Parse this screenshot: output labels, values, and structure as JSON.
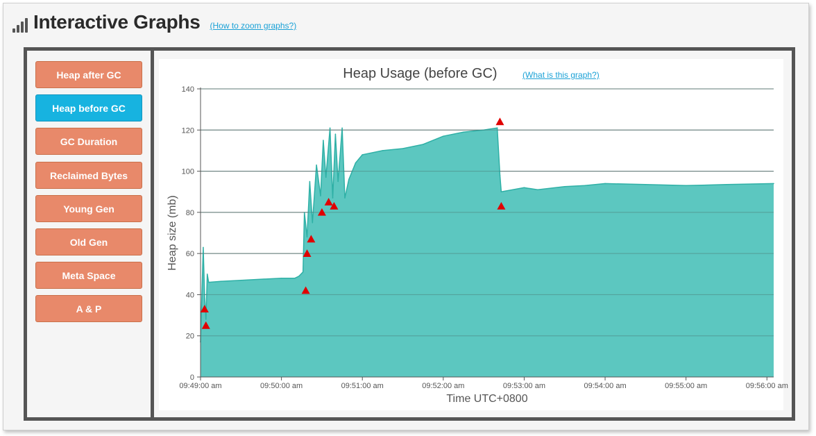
{
  "header": {
    "title": "Interactive Graphs",
    "zoom_link": "(How to zoom graphs?)"
  },
  "sidebar": {
    "items": [
      {
        "label": "Heap after GC",
        "active": false
      },
      {
        "label": "Heap before GC",
        "active": true
      },
      {
        "label": "GC Duration",
        "active": false
      },
      {
        "label": "Reclaimed Bytes",
        "active": false
      },
      {
        "label": "Young Gen",
        "active": false
      },
      {
        "label": "Old Gen",
        "active": false
      },
      {
        "label": "Meta Space",
        "active": false
      },
      {
        "label": "A & P",
        "active": false
      }
    ]
  },
  "colors": {
    "accent_active": "#17b3e0",
    "button": "#e8896a",
    "area_fill": "#5cc7c0",
    "area_line": "#2fb0a6",
    "marker": "#e00000"
  },
  "chart_data": {
    "type": "area",
    "title": "Heap Usage (before GC)",
    "info_link": "(What is this graph?)",
    "xlabel": "Time UTC+0800",
    "ylabel": "Heap size (mb)",
    "ylim": [
      0,
      140
    ],
    "yticks": [
      0,
      20,
      40,
      60,
      80,
      100,
      120,
      140
    ],
    "xlim": [
      "09:49:00",
      "09:56:05"
    ],
    "xticks": [
      "09:49:00 am",
      "09:50:00 am",
      "09:51:00 am",
      "09:52:00 am",
      "09:53:00 am",
      "09:54:00 am",
      "09:55:00 am",
      "09:56:00 am"
    ],
    "grid": true,
    "series": [
      {
        "values": [
          [
            "09:49:00",
            17
          ],
          [
            "09:49:01",
            40
          ],
          [
            "09:49:02",
            63
          ],
          [
            "09:49:03",
            40
          ],
          [
            "09:49:04",
            28
          ],
          [
            "09:49:05",
            50
          ],
          [
            "09:49:06",
            46
          ],
          [
            "09:49:15",
            46.5
          ],
          [
            "09:49:30",
            47
          ],
          [
            "09:50:00",
            48
          ],
          [
            "09:50:10",
            48
          ],
          [
            "09:50:13",
            49
          ],
          [
            "09:50:16",
            51
          ],
          [
            "09:50:17",
            80
          ],
          [
            "09:50:19",
            68
          ],
          [
            "09:50:21",
            95
          ],
          [
            "09:50:23",
            75
          ],
          [
            "09:50:26",
            103
          ],
          [
            "09:50:29",
            88
          ],
          [
            "09:50:31",
            115
          ],
          [
            "09:50:33",
            97
          ],
          [
            "09:50:36",
            121
          ],
          [
            "09:50:38",
            87
          ],
          [
            "09:50:40",
            118
          ],
          [
            "09:50:42",
            95
          ],
          [
            "09:50:45",
            121
          ],
          [
            "09:50:47",
            87
          ],
          [
            "09:50:50",
            96
          ],
          [
            "09:50:55",
            104
          ],
          [
            "09:51:00",
            108
          ],
          [
            "09:51:15",
            110
          ],
          [
            "09:51:30",
            111
          ],
          [
            "09:51:45",
            113
          ],
          [
            "09:52:00",
            117
          ],
          [
            "09:52:15",
            119
          ],
          [
            "09:52:30",
            120
          ],
          [
            "09:52:40",
            121
          ],
          [
            "09:52:42",
            98
          ],
          [
            "09:52:43",
            90
          ],
          [
            "09:53:00",
            92
          ],
          [
            "09:53:10",
            91
          ],
          [
            "09:53:30",
            92.5
          ],
          [
            "09:53:45",
            93
          ],
          [
            "09:54:00",
            94
          ],
          [
            "09:54:30",
            93.5
          ],
          [
            "09:55:00",
            93
          ],
          [
            "09:55:30",
            93.5
          ],
          [
            "09:56:05",
            94
          ]
        ]
      }
    ],
    "markers": [
      [
        "09:49:03",
        33
      ],
      [
        "09:49:04",
        25
      ],
      [
        "09:50:18",
        42
      ],
      [
        "09:50:19",
        60
      ],
      [
        "09:50:22",
        67
      ],
      [
        "09:50:30",
        80
      ],
      [
        "09:50:35",
        85
      ],
      [
        "09:50:39",
        83
      ],
      [
        "09:52:42",
        124
      ],
      [
        "09:52:43",
        83
      ]
    ]
  }
}
